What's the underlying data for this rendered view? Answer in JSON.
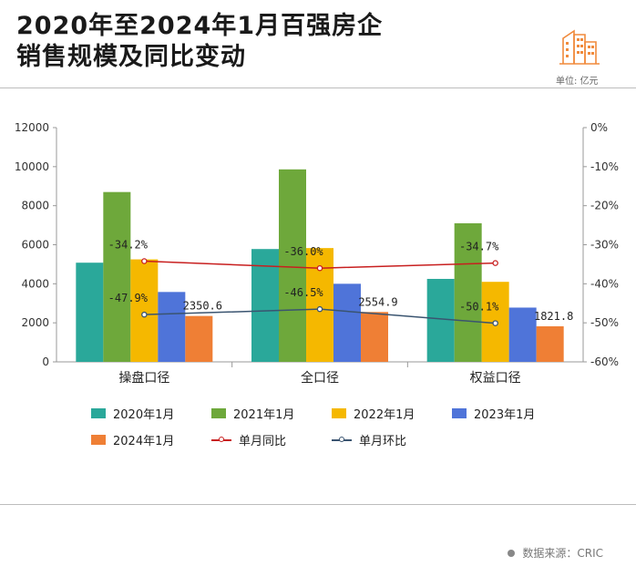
{
  "header": {
    "title_line1": "2020年至2024年1月百强房企",
    "title_line2": "销售规模及同比变动",
    "unit_label": "单位: 亿元"
  },
  "logo": {
    "icon": "buildings-icon",
    "color": "#f08a3c"
  },
  "source": {
    "text": "数据来源：CRIC"
  },
  "chart_data": {
    "type": "bar",
    "categories": [
      "操盘口径",
      "全口径",
      "权益口径"
    ],
    "series": [
      {
        "name": "2020年1月",
        "color": "#2aa89a",
        "values": [
          5080,
          5780,
          4250
        ]
      },
      {
        "name": "2021年1月",
        "color": "#6ea83b",
        "values": [
          8700,
          9860,
          7100
        ]
      },
      {
        "name": "2022年1月",
        "color": "#f5b800",
        "values": [
          5250,
          5830,
          4100
        ]
      },
      {
        "name": "2023年1月",
        "color": "#4f74d9",
        "values": [
          3580,
          4000,
          2780
        ]
      },
      {
        "name": "2024年1月",
        "color": "#ef7f35",
        "values": [
          2350.6,
          2554.9,
          1821.8
        ]
      }
    ],
    "lines": [
      {
        "name": "单月同比",
        "color": "#c81f1f",
        "values": [
          -34.2,
          -36.0,
          -34.7
        ]
      },
      {
        "name": "单月环比",
        "color": "#3a5470",
        "values": [
          -47.9,
          -46.5,
          -50.1
        ]
      }
    ],
    "bar_labels": [
      "2350.6",
      "2554.9",
      "1821.8"
    ],
    "line_labels": {
      "yoy": [
        "-34.2%",
        "-36.0%",
        "-34.7%"
      ],
      "mom": [
        "-47.9%",
        "-46.5%",
        "-50.1%"
      ]
    },
    "y_left": {
      "min": 0,
      "max": 12000,
      "ticks": [
        "0",
        "2000",
        "4000",
        "6000",
        "8000",
        "10000",
        "12000"
      ]
    },
    "y_right": {
      "min": -60,
      "max": 0,
      "ticks": [
        "-60%",
        "-50%",
        "-40%",
        "-30%",
        "-20%",
        "-10%",
        "0%"
      ]
    },
    "legend_position": "bottom",
    "grid": false
  }
}
